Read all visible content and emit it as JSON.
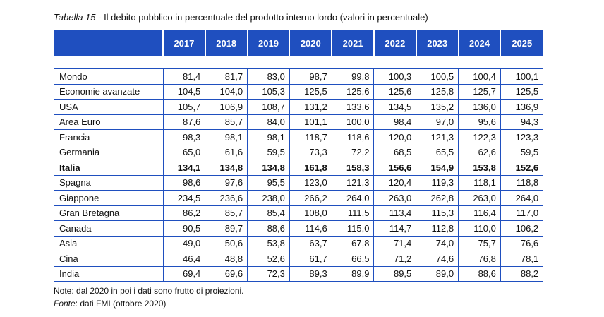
{
  "title": {
    "label": "Tabella 15",
    "text": " - Il debito pubblico in percentuale del prodotto interno lordo (valori in percentuale)"
  },
  "table": {
    "years": [
      "2017",
      "2018",
      "2019",
      "2020",
      "2021",
      "2022",
      "2023",
      "2024",
      "2025"
    ],
    "rows": [
      {
        "name": "Mondo",
        "values": [
          "81,4",
          "81,7",
          "83,0",
          "98,7",
          "99,8",
          "100,3",
          "100,5",
          "100,4",
          "100,1"
        ]
      },
      {
        "name": "Economie avanzate",
        "values": [
          "104,5",
          "104,0",
          "105,3",
          "125,5",
          "125,6",
          "125,6",
          "125,8",
          "125,7",
          "125,5"
        ]
      },
      {
        "name": "USA",
        "values": [
          "105,7",
          "106,9",
          "108,7",
          "131,2",
          "133,6",
          "134,5",
          "135,2",
          "136,0",
          "136,9"
        ]
      },
      {
        "name": "Area Euro",
        "values": [
          "87,6",
          "85,7",
          "84,0",
          "101,1",
          "100,0",
          "98,4",
          "97,0",
          "95,6",
          "94,3"
        ]
      },
      {
        "name": "Francia",
        "values": [
          "98,3",
          "98,1",
          "98,1",
          "118,7",
          "118,6",
          "120,0",
          "121,3",
          "122,3",
          "123,3"
        ]
      },
      {
        "name": "Germania",
        "values": [
          "65,0",
          "61,6",
          "59,5",
          "73,3",
          "72,2",
          "68,5",
          "65,5",
          "62,6",
          "59,5"
        ]
      },
      {
        "name": "Italia",
        "values": [
          "134,1",
          "134,8",
          "134,8",
          "161,8",
          "158,3",
          "156,6",
          "154,9",
          "153,8",
          "152,6"
        ]
      },
      {
        "name": "Spagna",
        "values": [
          "98,6",
          "97,6",
          "95,5",
          "123,0",
          "121,3",
          "120,4",
          "119,3",
          "118,1",
          "118,8"
        ]
      },
      {
        "name": "Giappone",
        "values": [
          "234,5",
          "236,6",
          "238,0",
          "266,2",
          "264,0",
          "263,0",
          "262,8",
          "263,0",
          "264,0"
        ]
      },
      {
        "name": "Gran Bretagna",
        "values": [
          "86,2",
          "85,7",
          "85,4",
          "108,0",
          "111,5",
          "113,4",
          "115,3",
          "116,4",
          "117,0"
        ]
      },
      {
        "name": "Canada",
        "values": [
          "90,5",
          "89,7",
          "88,6",
          "114,6",
          "115,0",
          "114,7",
          "112,8",
          "110,0",
          "106,2"
        ]
      },
      {
        "name": "Asia",
        "values": [
          "49,0",
          "50,6",
          "53,8",
          "63,7",
          "67,8",
          "71,4",
          "74,0",
          "75,7",
          "76,6"
        ]
      },
      {
        "name": "Cina",
        "values": [
          "46,4",
          "48,8",
          "52,6",
          "61,7",
          "66,5",
          "71,2",
          "74,6",
          "76,8",
          "78,1"
        ]
      },
      {
        "name": "India",
        "values": [
          "69,4",
          "69,6",
          "72,3",
          "89,3",
          "89,9",
          "89,5",
          "89,0",
          "88,6",
          "88,2"
        ]
      }
    ]
  },
  "note": "Note: dal 2020 in poi i dati sono frutto di proiezioni.",
  "source": {
    "label": "Fonte",
    "text": ": dati FMI (ottobre 2020)"
  },
  "colors": {
    "header_background": "#1f4fbf",
    "header_text": "#ffffff",
    "grid_lines": "#1f4fbf"
  }
}
